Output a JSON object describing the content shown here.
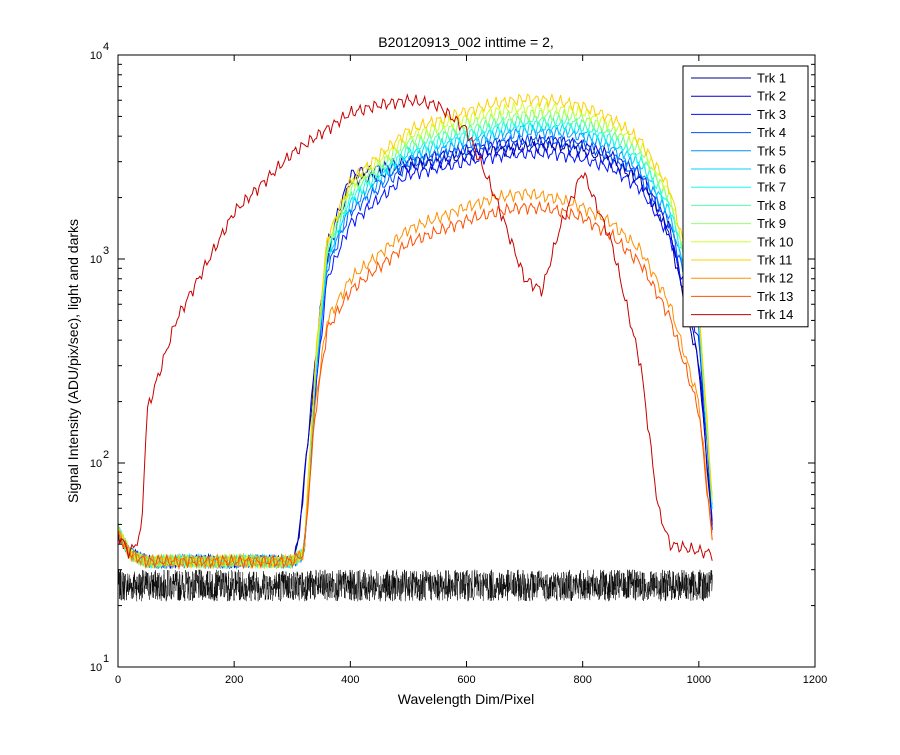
{
  "chart_data": {
    "type": "line",
    "title": "B20120913_002 inttime = 2,",
    "xlabel": "Wavelength Dim/Pixel",
    "ylabel": "Signal Intensity (ADU/pix/sec), light and darks",
    "xlim": [
      0,
      1200
    ],
    "ylim": [
      10,
      10000
    ],
    "yscale": "log",
    "grid": false,
    "legend_position": "top-right",
    "x_ticks": [
      0,
      200,
      400,
      600,
      800,
      1000,
      1200
    ],
    "x_tick_labels": [
      "0",
      "200",
      "400",
      "600",
      "800",
      "1000",
      "1200"
    ],
    "y_ticks": [
      10,
      100,
      1000,
      10000
    ],
    "y_tick_labels": [
      {
        "base": "10",
        "exp": "1"
      },
      {
        "base": "10",
        "exp": "2"
      },
      {
        "base": "10",
        "exp": "3"
      },
      {
        "base": "10",
        "exp": "4"
      }
    ],
    "series": [
      {
        "name": "Trk 1",
        "color": "#00008f",
        "x": [
          0,
          20,
          50,
          100,
          200,
          300,
          310,
          340,
          360,
          400,
          500,
          600,
          650,
          700,
          750,
          800,
          850,
          900,
          950,
          1000,
          1024
        ],
        "y": [
          45,
          36,
          33,
          33,
          33,
          33,
          40,
          300,
          1000,
          2400,
          2800,
          3200,
          3400,
          3500,
          3600,
          3400,
          3000,
          2400,
          1300,
          300,
          45
        ]
      },
      {
        "name": "Trk 2",
        "color": "#0000c8",
        "x": [
          0,
          20,
          50,
          100,
          200,
          300,
          310,
          340,
          360,
          400,
          500,
          600,
          650,
          700,
          750,
          800,
          850,
          900,
          950,
          1000,
          1024
        ],
        "y": [
          45,
          36,
          33,
          33,
          33,
          33,
          40,
          330,
          1150,
          2600,
          3000,
          3400,
          3600,
          3700,
          3800,
          3600,
          3200,
          2600,
          1400,
          320,
          45
        ]
      },
      {
        "name": "Trk 3",
        "color": "#0010ff",
        "x": [
          0,
          20,
          50,
          100,
          200,
          300,
          320,
          340,
          360,
          400,
          500,
          600,
          650,
          700,
          750,
          800,
          850,
          900,
          950,
          1000,
          1024
        ],
        "y": [
          45,
          36,
          33,
          33,
          33,
          33,
          36,
          220,
          800,
          1500,
          2600,
          3000,
          3200,
          3300,
          3300,
          3100,
          2800,
          2200,
          1300,
          400,
          50
        ]
      },
      {
        "name": "Trk 4",
        "color": "#0050ff",
        "x": [
          0,
          20,
          50,
          100,
          200,
          300,
          320,
          340,
          360,
          400,
          500,
          600,
          650,
          700,
          750,
          800,
          850,
          900,
          950,
          1000,
          1024
        ],
        "y": [
          45,
          36,
          33,
          33,
          33,
          33,
          36,
          250,
          900,
          1700,
          2900,
          3400,
          3700,
          3800,
          3800,
          3600,
          3200,
          2500,
          1500,
          450,
          55
        ]
      },
      {
        "name": "Trk 5",
        "color": "#0090ff",
        "x": [
          0,
          20,
          50,
          100,
          200,
          300,
          320,
          340,
          360,
          400,
          500,
          600,
          650,
          700,
          750,
          800,
          850,
          900,
          950,
          1000,
          1024
        ],
        "y": [
          46,
          36,
          33,
          33,
          33,
          33,
          36,
          260,
          950,
          1800,
          3100,
          3700,
          4000,
          4200,
          4200,
          4000,
          3500,
          2700,
          1600,
          480,
          55
        ]
      },
      {
        "name": "Trk 6",
        "color": "#00d0ff",
        "x": [
          0,
          20,
          50,
          100,
          200,
          300,
          320,
          340,
          360,
          400,
          500,
          600,
          650,
          700,
          750,
          800,
          850,
          900,
          950,
          1000,
          1024
        ],
        "y": [
          46,
          36,
          33,
          33,
          33,
          33,
          36,
          270,
          1000,
          1900,
          3300,
          3900,
          4200,
          4400,
          4400,
          4200,
          3700,
          2900,
          1700,
          500,
          56
        ]
      },
      {
        "name": "Trk 7",
        "color": "#10ffef",
        "x": [
          0,
          20,
          50,
          100,
          200,
          300,
          320,
          340,
          360,
          400,
          500,
          600,
          650,
          700,
          750,
          800,
          850,
          900,
          950,
          1000,
          1024
        ],
        "y": [
          47,
          36,
          33,
          33,
          33,
          33,
          36,
          280,
          1050,
          2000,
          3400,
          4100,
          4400,
          4600,
          4600,
          4400,
          3900,
          3000,
          1800,
          520,
          57
        ]
      },
      {
        "name": "Trk 8",
        "color": "#50ffaf",
        "x": [
          0,
          20,
          50,
          100,
          200,
          300,
          320,
          340,
          360,
          400,
          500,
          600,
          650,
          700,
          750,
          800,
          850,
          900,
          950,
          1000,
          1024
        ],
        "y": [
          47,
          36,
          33,
          33,
          33,
          33,
          36,
          290,
          1100,
          2100,
          3600,
          4300,
          4600,
          4800,
          4800,
          4600,
          4100,
          3200,
          1900,
          540,
          58
        ]
      },
      {
        "name": "Trk 9",
        "color": "#90ff70",
        "x": [
          0,
          20,
          50,
          100,
          200,
          300,
          320,
          340,
          360,
          400,
          500,
          600,
          650,
          700,
          750,
          800,
          850,
          900,
          950,
          1000,
          1024
        ],
        "y": [
          48,
          36,
          33,
          33,
          33,
          33,
          36,
          300,
          1150,
          2200,
          3800,
          4600,
          4900,
          5100,
          5100,
          4900,
          4300,
          3400,
          2000,
          560,
          59
        ]
      },
      {
        "name": "Trk 10",
        "color": "#d0ff30",
        "x": [
          0,
          20,
          50,
          100,
          200,
          300,
          320,
          340,
          360,
          400,
          500,
          600,
          650,
          700,
          750,
          800,
          850,
          900,
          950,
          1000,
          1024
        ],
        "y": [
          48,
          36,
          33,
          33,
          33,
          33,
          36,
          310,
          1200,
          2300,
          4000,
          4900,
          5300,
          5500,
          5500,
          5200,
          4600,
          3600,
          2100,
          580,
          60
        ]
      },
      {
        "name": "Trk 11",
        "color": "#ffd000",
        "x": [
          0,
          20,
          50,
          100,
          200,
          300,
          320,
          340,
          360,
          400,
          500,
          600,
          650,
          700,
          750,
          800,
          850,
          900,
          950,
          1000,
          1024
        ],
        "y": [
          48,
          36,
          33,
          33,
          33,
          33,
          36,
          320,
          1250,
          2400,
          4300,
          5300,
          5800,
          6100,
          6000,
          5600,
          4900,
          3800,
          2200,
          600,
          62
        ]
      },
      {
        "name": "Trk 12",
        "color": "#ff8f00",
        "x": [
          0,
          20,
          50,
          100,
          200,
          300,
          320,
          340,
          360,
          400,
          500,
          600,
          650,
          700,
          750,
          800,
          850,
          900,
          950,
          1000,
          1024
        ],
        "y": [
          45,
          36,
          33,
          33,
          33,
          33,
          36,
          200,
          500,
          800,
          1400,
          1800,
          2000,
          2100,
          2000,
          1800,
          1500,
          1100,
          600,
          200,
          40
        ]
      },
      {
        "name": "Trk 13",
        "color": "#ff5000",
        "x": [
          0,
          20,
          50,
          100,
          200,
          300,
          320,
          340,
          360,
          400,
          500,
          600,
          650,
          700,
          750,
          800,
          850,
          900,
          950,
          1000,
          1024
        ],
        "y": [
          45,
          36,
          33,
          33,
          33,
          33,
          36,
          180,
          450,
          700,
          1200,
          1550,
          1700,
          1800,
          1750,
          1600,
          1300,
          950,
          520,
          180,
          40
        ]
      },
      {
        "name": "Trk 14",
        "color": "#c80000",
        "x": [
          0,
          20,
          40,
          50,
          100,
          200,
          300,
          400,
          450,
          500,
          550,
          600,
          650,
          700,
          730,
          760,
          800,
          850,
          900,
          930,
          950,
          1000,
          1024
        ],
        "y": [
          45,
          36,
          45,
          180,
          500,
          1700,
          3300,
          5200,
          5700,
          6000,
          5700,
          4300,
          2000,
          800,
          700,
          1400,
          2700,
          1200,
          300,
          60,
          40,
          37,
          36
        ]
      }
    ],
    "dark_frames": {
      "color": "#000000",
      "x": [
        0,
        200,
        400,
        600,
        800,
        1000,
        1024
      ],
      "y_low": [
        21,
        21,
        21,
        21,
        21,
        21,
        21
      ],
      "y_high": [
        30,
        30,
        30,
        30,
        30,
        30,
        30
      ]
    }
  }
}
